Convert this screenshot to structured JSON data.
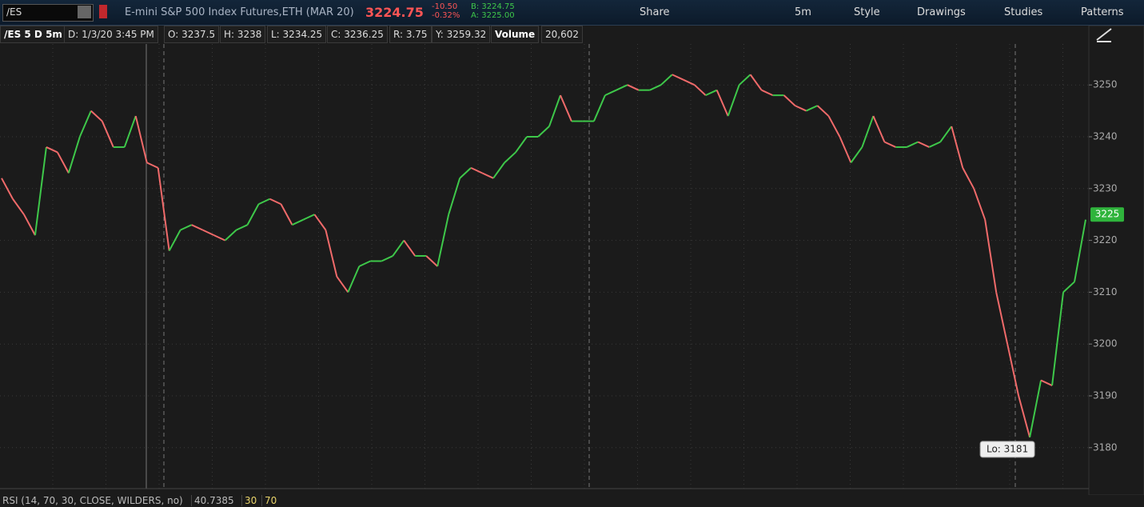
{
  "toolbar": {
    "symbol": "/ES",
    "description": "E-mini S&P 500 Index Futures,ETH (MAR 20)",
    "last": "3224.75",
    "change": "-10.50",
    "change_pct": "-0.32%",
    "bid": "B: 3224.75",
    "ask": "A: 3225.00",
    "share": "Share",
    "timeframe": "5m",
    "style": "Style",
    "drawings": "Drawings",
    "studies": "Studies",
    "patterns": "Patterns"
  },
  "info_bar": {
    "chart": "/ES 5 D 5m",
    "date": "D: 1/3/20 3:45 PM",
    "open": "O: 3237.5",
    "high": "H: 3238",
    "low": "L: 3234.25",
    "close": "C: 3236.25",
    "range": "R: 3.75",
    "y": "Y: 3259.32",
    "volume_label": "Volume",
    "volume": "20,602"
  },
  "chart_data": {
    "type": "line",
    "ylim": [
      3172.1,
      3257.9
    ],
    "yticks": [
      3180,
      3190,
      3200,
      3210,
      3220,
      3230,
      3240,
      3250
    ],
    "grid": true,
    "series": [
      {
        "name": null,
        "color": "#3ec84a",
        "down_color": "#f06a6a",
        "values": [
          3232,
          3228,
          3225,
          3221,
          3238,
          3237,
          3233,
          3240,
          3245,
          3243,
          3238,
          3238,
          3244,
          3235,
          3234,
          3218,
          3222,
          3223,
          3222,
          3221,
          3220,
          3222,
          3223,
          3227,
          3228,
          3227,
          3223,
          3224,
          3225,
          3222,
          3213,
          3210,
          3215,
          3216,
          3216,
          3217,
          3220,
          3217,
          3217,
          3215,
          3225,
          3232,
          3234,
          3233,
          3232,
          3235,
          3237,
          3240,
          3240,
          3242,
          3248,
          3243,
          3243,
          3243,
          3248,
          3249,
          3250,
          3249,
          3249,
          3250,
          3252,
          3251,
          3250,
          3248,
          3249,
          3244,
          3250,
          3252,
          3249,
          3248,
          3248,
          3246,
          3245,
          3246,
          3244,
          3240,
          3235,
          3238,
          3244,
          3239,
          3238,
          3238,
          3239,
          3238,
          3239,
          3242,
          3234,
          3230,
          3224,
          3210,
          3200,
          3190,
          3182,
          3193,
          3192,
          3210,
          3212,
          3224
        ]
      }
    ],
    "last_price": 3225,
    "annotation": "Lo: 3181"
  },
  "footer": {
    "study": "RSI (14, 70, 30, CLOSE, WILDERS, no)",
    "value": "40.7385",
    "level_low": "30",
    "level_high": "70"
  }
}
